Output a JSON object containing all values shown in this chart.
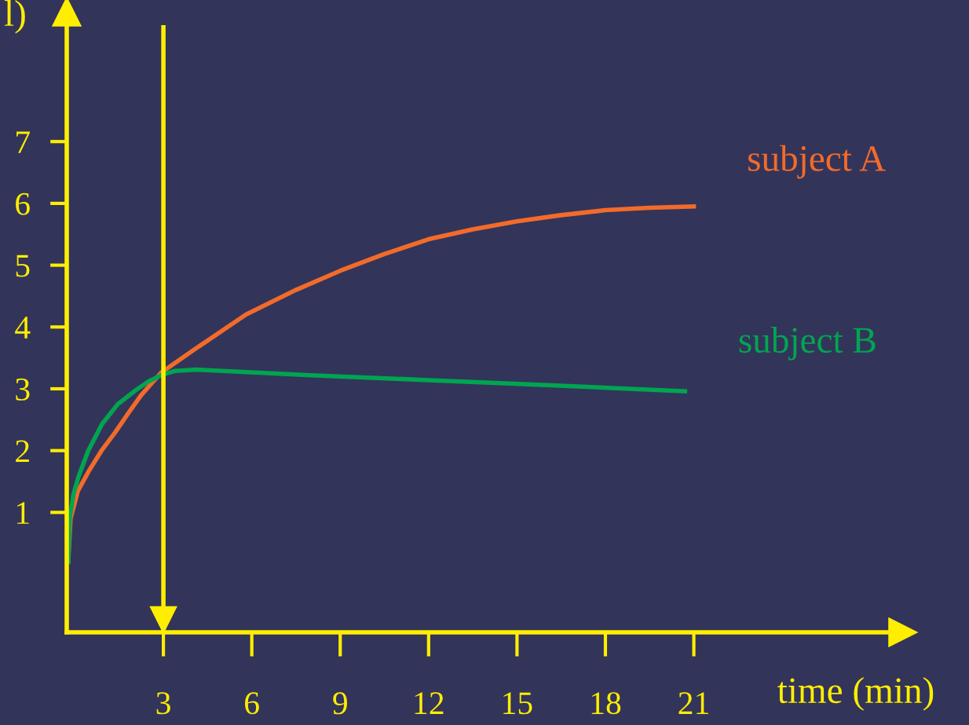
{
  "chart_data": {
    "type": "line",
    "xlabel": "time (min)",
    "ylabel": "l)",
    "xlim": [
      -0.28,
      28.1
    ],
    "ylim": [
      -0.94,
      9.1
    ],
    "xticks": [
      3,
      6,
      9,
      12,
      15,
      18,
      21
    ],
    "yticks": [
      1,
      2,
      3,
      4,
      5,
      6,
      7
    ],
    "grid": false,
    "ref_lines": [
      {
        "axis": "x",
        "value": 3,
        "color": "#ffee00"
      }
    ],
    "series": [
      {
        "name": "subject A",
        "color": "#f26b2a",
        "x": [
          -0.23,
          -0.15,
          0.1,
          0.47,
          0.9,
          1.37,
          1.8,
          2.25,
          2.92,
          4,
          5.8,
          7.5,
          9,
          10.5,
          12,
          13.5,
          15,
          16.5,
          18,
          19.5,
          21
        ],
        "values": [
          0.2,
          0.9,
          1.35,
          1.67,
          2.0,
          2.3,
          2.6,
          2.9,
          3.26,
          3.62,
          4.2,
          4.6,
          4.91,
          5.18,
          5.42,
          5.58,
          5.71,
          5.81,
          5.89,
          5.93,
          5.95
        ]
      },
      {
        "name": "subject B",
        "color": "#00a550",
        "x": [
          -0.23,
          -0.18,
          -0.05,
          0.12,
          0.45,
          0.92,
          1.45,
          2.07,
          2.5,
          2.92,
          3.4,
          4.12,
          8,
          12,
          16,
          20.7
        ],
        "values": [
          0.2,
          0.9,
          1.3,
          1.58,
          2.0,
          2.43,
          2.75,
          2.98,
          3.12,
          3.22,
          3.29,
          3.31,
          3.22,
          3.14,
          3.06,
          2.96
        ]
      }
    ]
  }
}
